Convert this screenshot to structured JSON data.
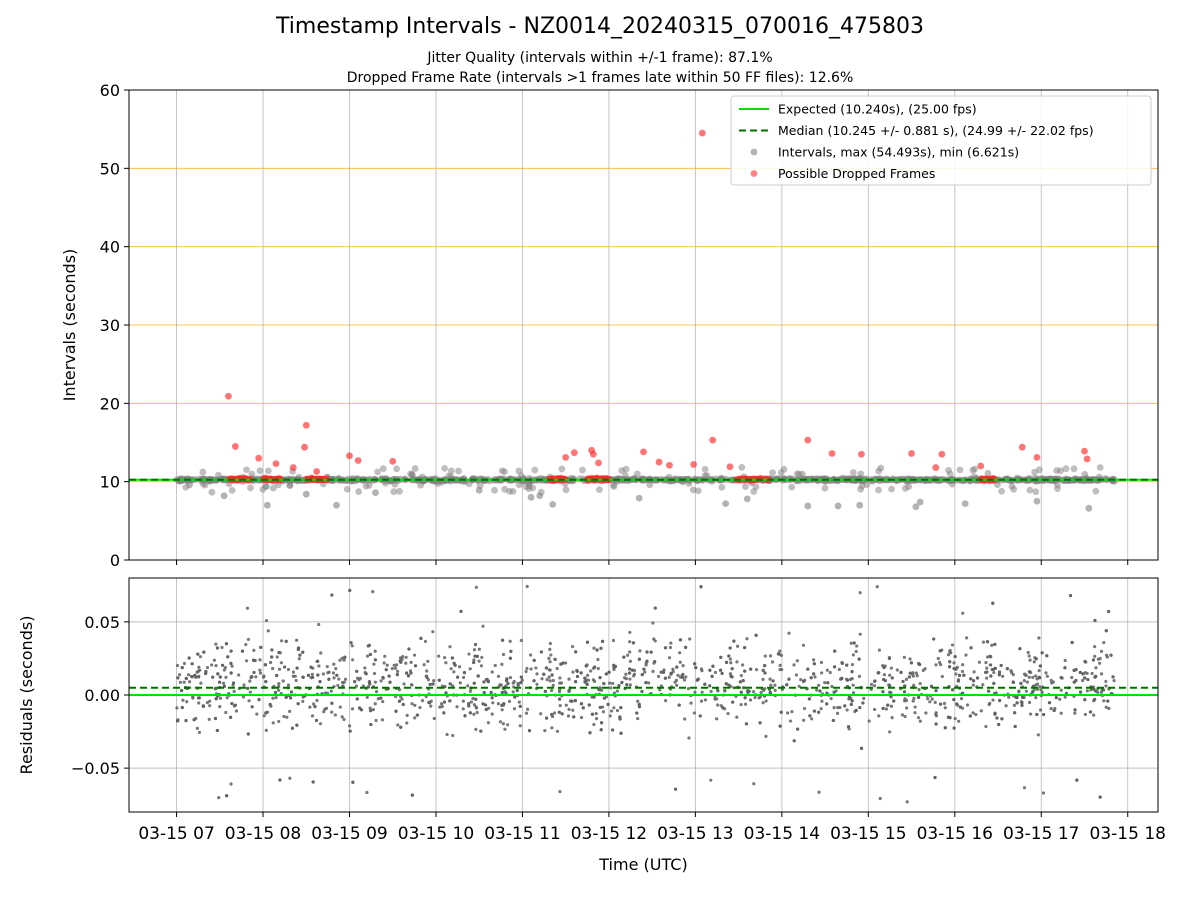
{
  "header": {
    "title": "Timestamp Intervals - NZ0014_20240315_070016_475803",
    "subtitle_1": "Jitter Quality (intervals within +/-1 frame): 87.1%",
    "subtitle_2": "Dropped Frame Rate (intervals >1 frames late within 50 FF files): 12.6%"
  },
  "chart_data": [
    {
      "type": "scatter",
      "panel": "top",
      "ylabel": "Intervals (seconds)",
      "ylim": [
        0,
        60
      ],
      "yticks": [
        "0",
        "10",
        "20",
        "30",
        "40",
        "50",
        "60"
      ],
      "grid": true,
      "orange_gridlines": [
        10,
        20,
        30,
        40,
        50,
        60
      ],
      "legend_position": "top-right",
      "legend": [
        {
          "label": "Expected (10.240s), (25.00 fps)",
          "style": "solid-line",
          "color": "#00e000"
        },
        {
          "label": "Median (10.245 +/- 0.881 s), (24.99 +/- 22.02 fps)",
          "style": "dashed-line",
          "color": "#007000"
        },
        {
          "label": "Intervals, max (54.493s), min (6.621s)",
          "style": "marker",
          "color": "#808080"
        },
        {
          "label": "Possible Dropped Frames",
          "style": "marker",
          "color": "#ff3333"
        }
      ],
      "expected": 10.24,
      "median": 10.245,
      "series": [
        {
          "name": "Possible Dropped Frames",
          "color": "#ff3333",
          "x": [
            7.6,
            7.68,
            7.95,
            8.15,
            8.35,
            8.48,
            8.5,
            8.62,
            9.0,
            9.1,
            9.5,
            11.5,
            11.6,
            11.8,
            11.82,
            11.88,
            12.4,
            12.58,
            12.7,
            12.98,
            13.2,
            13.4,
            14.3,
            14.58,
            14.92,
            15.5,
            15.78,
            15.85,
            16.3,
            16.78,
            16.95,
            17.5,
            17.53,
            13.08
          ],
          "y": [
            20.9,
            14.5,
            13.0,
            12.3,
            11.8,
            14.4,
            17.2,
            11.3,
            13.3,
            12.7,
            12.6,
            13.1,
            13.7,
            14.0,
            13.5,
            12.4,
            13.8,
            12.5,
            12.1,
            12.2,
            15.3,
            11.9,
            15.3,
            13.6,
            13.5,
            13.6,
            11.8,
            13.5,
            12.0,
            14.4,
            13.1,
            13.9,
            12.9,
            54.5
          ]
        },
        {
          "name": "Intervals, max (54.493s), min (6.621s)",
          "color": "#808080",
          "x": [
            7.15,
            7.55,
            8.05,
            8.5,
            8.85,
            9.3,
            10.5,
            11.1,
            11.2,
            11.35,
            12.35,
            13.35,
            13.6,
            14.3,
            14.65,
            14.9,
            15.55,
            15.6,
            16.12,
            16.95,
            17.55
          ],
          "y": [
            9.6,
            8.2,
            7.0,
            8.4,
            7.0,
            8.6,
            8.9,
            8.0,
            8.2,
            7.1,
            7.9,
            7.2,
            7.8,
            6.9,
            6.9,
            7.0,
            6.8,
            7.4,
            7.2,
            7.5,
            6.6
          ]
        }
      ]
    },
    {
      "type": "scatter",
      "panel": "bottom",
      "ylabel": "Residuals (seconds)",
      "xlabel": "Time (UTC)",
      "ylim": [
        -0.08,
        0.08
      ],
      "yticks": [
        "−0.05",
        "0.00",
        "0.05"
      ],
      "xticks": [
        "03-15 07",
        "03-15 08",
        "03-15 09",
        "03-15 10",
        "03-15 11",
        "03-15 12",
        "03-15 13",
        "03-15 14",
        "03-15 15",
        "03-15 16",
        "03-15 17",
        "03-15 18"
      ],
      "expected_residual": 0.0,
      "median_residual": 0.005,
      "x_range_hours": [
        6.45,
        18.35
      ],
      "data_span_hours": [
        7.0,
        17.85
      ],
      "grid": true
    }
  ]
}
